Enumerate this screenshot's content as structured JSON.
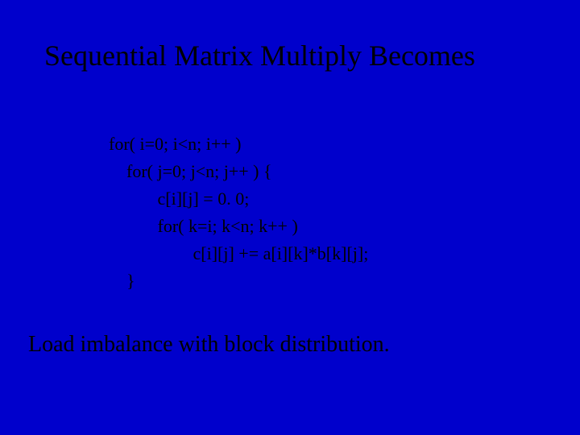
{
  "slide": {
    "background_color": "#0000cc",
    "text_color": "#000000",
    "font_family": "Times New Roman",
    "title": "Sequential Matrix Multiply Becomes",
    "title_fontsize": 36,
    "code": {
      "fontsize": 22,
      "lines": [
        "for( i=0; i<n; i++ )",
        "    for( j=0; j<n; j++ ) {",
        "           c[i][j] = 0. 0;",
        "           for( k=i; k<n; k++ )",
        "                   c[i][j] += a[i][k]*b[k][j];",
        "    }"
      ]
    },
    "footer": "Load imbalance with block distribution.",
    "footer_fontsize": 28
  }
}
